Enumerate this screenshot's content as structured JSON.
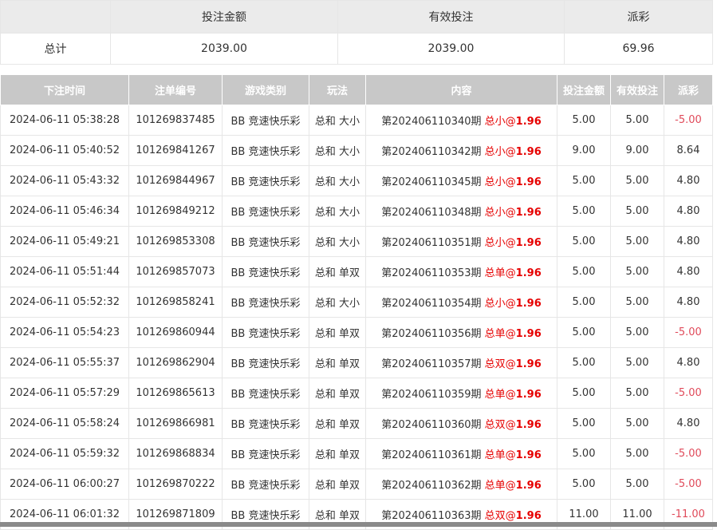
{
  "summary": {
    "headers": [
      "",
      "投注金额",
      "有效投注",
      "派彩"
    ],
    "label": "总计",
    "bet": "2039.00",
    "valid": "2039.00",
    "payout": "69.96"
  },
  "table": {
    "headers": [
      "下注时间",
      "注单编号",
      "游戏类别",
      "玩法",
      "内容",
      "投注金额",
      "有效投注",
      "派彩"
    ],
    "rows": [
      {
        "time": "2024-06-11 05:38:28",
        "id": "101269837485",
        "game": "BB 竞速快乐彩",
        "play": "总和 大小",
        "period": "第202406110340期",
        "pick": "总小",
        "at": "@",
        "odds": "1.96",
        "bet": "5.00",
        "valid": "5.00",
        "payout": "-5.00"
      },
      {
        "time": "2024-06-11 05:40:52",
        "id": "101269841267",
        "game": "BB 竞速快乐彩",
        "play": "总和 大小",
        "period": "第202406110342期",
        "pick": "总小",
        "at": "@",
        "odds": "1.96",
        "bet": "9.00",
        "valid": "9.00",
        "payout": "8.64"
      },
      {
        "time": "2024-06-11 05:43:32",
        "id": "101269844967",
        "game": "BB 竞速快乐彩",
        "play": "总和 大小",
        "period": "第202406110345期",
        "pick": "总小",
        "at": "@",
        "odds": "1.96",
        "bet": "5.00",
        "valid": "5.00",
        "payout": "4.80"
      },
      {
        "time": "2024-06-11 05:46:34",
        "id": "101269849212",
        "game": "BB 竞速快乐彩",
        "play": "总和 大小",
        "period": "第202406110348期",
        "pick": "总小",
        "at": "@",
        "odds": "1.96",
        "bet": "5.00",
        "valid": "5.00",
        "payout": "4.80"
      },
      {
        "time": "2024-06-11 05:49:21",
        "id": "101269853308",
        "game": "BB 竞速快乐彩",
        "play": "总和 大小",
        "period": "第202406110351期",
        "pick": "总小",
        "at": "@",
        "odds": "1.96",
        "bet": "5.00",
        "valid": "5.00",
        "payout": "4.80"
      },
      {
        "time": "2024-06-11 05:51:44",
        "id": "101269857073",
        "game": "BB 竞速快乐彩",
        "play": "总和 单双",
        "period": "第202406110353期",
        "pick": "总单",
        "at": "@",
        "odds": "1.96",
        "bet": "5.00",
        "valid": "5.00",
        "payout": "4.80"
      },
      {
        "time": "2024-06-11 05:52:32",
        "id": "101269858241",
        "game": "BB 竞速快乐彩",
        "play": "总和 大小",
        "period": "第202406110354期",
        "pick": "总小",
        "at": "@",
        "odds": "1.96",
        "bet": "5.00",
        "valid": "5.00",
        "payout": "4.80"
      },
      {
        "time": "2024-06-11 05:54:23",
        "id": "101269860944",
        "game": "BB 竞速快乐彩",
        "play": "总和 单双",
        "period": "第202406110356期",
        "pick": "总单",
        "at": "@",
        "odds": "1.96",
        "bet": "5.00",
        "valid": "5.00",
        "payout": "-5.00"
      },
      {
        "time": "2024-06-11 05:55:37",
        "id": "101269862904",
        "game": "BB 竞速快乐彩",
        "play": "总和 单双",
        "period": "第202406110357期",
        "pick": "总双",
        "at": "@",
        "odds": "1.96",
        "bet": "5.00",
        "valid": "5.00",
        "payout": "4.80"
      },
      {
        "time": "2024-06-11 05:57:29",
        "id": "101269865613",
        "game": "BB 竞速快乐彩",
        "play": "总和 单双",
        "period": "第202406110359期",
        "pick": "总单",
        "at": "@",
        "odds": "1.96",
        "bet": "5.00",
        "valid": "5.00",
        "payout": "-5.00"
      },
      {
        "time": "2024-06-11 05:58:24",
        "id": "101269866981",
        "game": "BB 竞速快乐彩",
        "play": "总和 单双",
        "period": "第202406110360期",
        "pick": "总双",
        "at": "@",
        "odds": "1.96",
        "bet": "5.00",
        "valid": "5.00",
        "payout": "4.80"
      },
      {
        "time": "2024-06-11 05:59:32",
        "id": "101269868834",
        "game": "BB 竞速快乐彩",
        "play": "总和 单双",
        "period": "第202406110361期",
        "pick": "总单",
        "at": "@",
        "odds": "1.96",
        "bet": "5.00",
        "valid": "5.00",
        "payout": "-5.00"
      },
      {
        "time": "2024-06-11 06:00:27",
        "id": "101269870222",
        "game": "BB 竞速快乐彩",
        "play": "总和 单双",
        "period": "第202406110362期",
        "pick": "总单",
        "at": "@",
        "odds": "1.96",
        "bet": "5.00",
        "valid": "5.00",
        "payout": "-5.00"
      },
      {
        "time": "2024-06-11 06:01:32",
        "id": "101269871809",
        "game": "BB 竞速快乐彩",
        "play": "总和 单双",
        "period": "第202406110363期",
        "pick": "总双",
        "at": "@",
        "odds": "1.96",
        "bet": "11.00",
        "valid": "11.00",
        "payout": "-11.00"
      }
    ]
  },
  "colors": {
    "pick": "#e60000",
    "negative": "#e04a5a",
    "header_bg": "#c8c8c8"
  }
}
